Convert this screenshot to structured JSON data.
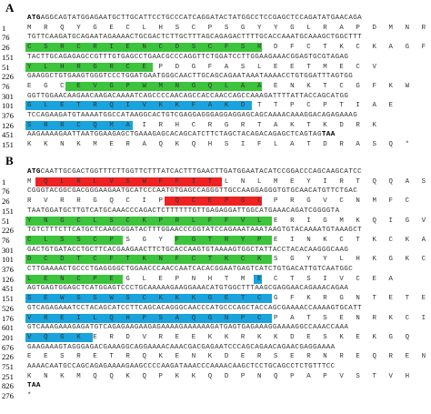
{
  "panels": [
    {
      "label": "A",
      "rows": [
        {
          "num": "",
          "type": "nt",
          "bold_prefix": "ATG",
          "text": "AGGCAGTATGGAGAATGCTTGCATTCCTGCCCATCAGGATACTATGGCCTCCGAGCTCCAGATATGAACAGA",
          "bold_suffix": ""
        },
        {
          "num": "1",
          "type": "aa",
          "text": "M R Q Y G E C L H S C P S G Y Y G L R A P D M N R",
          "highlights": []
        },
        {
          "num": "76",
          "type": "nt",
          "bold_prefix": "",
          "text": "TGTTCAAGATGCAGAATAGAAAACTGCGACTCTTGCTTTAGCAGAGACTTTTGCACCAAATGCAAAGCTGGCTTT",
          "bold_suffix": ""
        },
        {
          "num": "26",
          "type": "aa",
          "text": "C S R C R I E N C D S C F S R D F C T K C K A G F",
          "highlights": [
            {
              "color": "green",
              "start": 0,
              "end": 24
            }
          ]
        },
        {
          "num": "151",
          "type": "nt",
          "bold_prefix": "",
          "text": "TACTTGCAGAGAGCCGTTTGTGAGCCTGAACGCCCAGGTTCTGGATCCTTGGAAGAAACGGAGTGCGTAGAG",
          "bold_suffix": ""
        },
        {
          "num": "51",
          "type": "aa",
          "text": "Y L H R G R C E P D G F A S L E E T M E C V",
          "highlights": [
            {
              "color": "green",
              "start": 0,
              "end": 13
            }
          ]
        },
        {
          "num": "226",
          "type": "nt",
          "bold_prefix": "",
          "text": "GAAGGCTGTGAAGTGGGTCCCTGGATGAATGGGCAACTTGCAGCAGAATAAATAAAACCTGTGGATTTAGTGG",
          "bold_suffix": ""
        },
        {
          "num": "76",
          "type": "aa",
          "text": "E G C E V G P W M N G Q L A A E N K T C G F K W",
          "highlights": [
            {
              "color": "green",
              "start": 4,
              "end": 24
            }
          ]
        },
        {
          "num": "301",
          "type": "nt",
          "bold_prefix": "",
          "text": "GGTTGGAACAAGAACAAGACAAAATCAGCCCCAACAGCCACCAACCAGCCAAAGATTTTATTACCAGCATGG",
          "bold_suffix": ""
        },
        {
          "num": "101",
          "type": "aa",
          "text": "G L E T R Q I V K K F A K D T T P C P T I A E",
          "highlights": [
            {
              "color": "blue",
              "start": 0,
              "end": 23
            }
          ]
        },
        {
          "num": "376",
          "type": "nt",
          "bold_prefix": "",
          "text": "TCCAGAAGATGTAAAATGGCCATAAGGCACTGTCGAGGAGGGAGGAGGAGCAGCAAAACAAAGGACAGAGAAAG",
          "bold_suffix": ""
        },
        {
          "num": "126",
          "type": "aa",
          "text": "S R R C Q M A I R H C R G R T A K T K D R K",
          "highlights": [
            {
              "color": "blue",
              "start": 0,
              "end": 11
            }
          ]
        },
        {
          "num": "451",
          "type": "nt",
          "bold_prefix": "",
          "text": "AAGAAAAGAATTAATGGAAGAGCTGAAAGAGCACAGCATCTTCTAGCTACAGACAGAGCTCAGTAG",
          "bold_suffix": "TAA"
        },
        {
          "num": "151",
          "type": "aa",
          "text": "K K N K M E R A Q K Q H S I F L A T D R A S Q *",
          "highlights": []
        }
      ]
    },
    {
      "label": "B",
      "rows": [
        {
          "num": "",
          "type": "nt",
          "bold_prefix": "ATG",
          "text": "CAATTGCGACTGGTTTCTTGGTTCTTTATCACTTTGAACTTGATGGAATACATCCGGACCCAGCAAGCATCC",
          "bold_suffix": ""
        },
        {
          "num": "1",
          "type": "aa",
          "text": "M Q L R L V S W F F I T L N L M E Y I R T Q Q A S",
          "highlights": [
            {
              "color": "red",
              "start": 1,
              "end": 20
            }
          ]
        },
        {
          "num": "76",
          "type": "nt",
          "bold_prefix": "",
          "text": "CGGGTACGGCGACGGGAAGAATGCATCCCAATGTGAGCCAGGGTTGCCAAGGAGGGTGTGCAACATGTTCTGAC",
          "bold_suffix": ""
        },
        {
          "num": "26",
          "type": "aa",
          "text": "R V R R G Q C I P Q C E P G L P R G V C N M F C",
          "highlights": [
            {
              "color": "red",
              "start": 14,
              "end": 24
            }
          ]
        },
        {
          "num": "151",
          "type": "nt",
          "bold_prefix": "",
          "text": "TAATGGATGCTTGTCATGCAAACCCAGACTCTTTTTTGTTGAGAGGATTGGCATGAAACAGATCGGGGTA",
          "bold_suffix": ""
        },
        {
          "num": "51",
          "type": "aa",
          "text": "Y N G C L S C K P R L F F V L E R I G M K Q I G V",
          "highlights": [
            {
              "color": "green",
              "start": 0,
              "end": 25
            }
          ]
        },
        {
          "num": "226",
          "type": "nt",
          "bold_prefix": "",
          "text": "TGTCTTTCTTCATGCTCAAGCGGATACTTTGGAACCCGGTATCCAGAAATAAATAAGTGTACAAAATGTAAAGCT",
          "bold_suffix": ""
        },
        {
          "num": "76",
          "type": "aa",
          "text": "C L S S C P S G Y F G T R Y P E I N K C T K C K A",
          "highlights": [
            {
              "color": "green",
              "start": 0,
              "end": 10
            },
            {
              "color": "green",
              "start": 15,
              "end": 25
            }
          ]
        },
        {
          "num": "301",
          "type": "nt",
          "bold_prefix": "",
          "text": "GACTGTGATACCTGCTTCACGAAGAACTTCTGCACCAAGTGTAAAAGTGGCTATTACCTACACAAGGGCAAG",
          "bold_suffix": ""
        },
        {
          "num": "101",
          "type": "aa",
          "text": "D C D T C F T K N F C T K C K S G Y Y L H K G K C",
          "highlights": [
            {
              "color": "green",
              "start": 0,
              "end": 25
            }
          ]
        },
        {
          "num": "376",
          "type": "nt",
          "bold_prefix": "",
          "text": "CTTGAAAACTGCCCTGAGGGGCTGGAACCCAACCAATCACACGGAATGAGTCATCTGTGACATTGTCAATGGC",
          "bold_suffix": ""
        },
        {
          "num": "126",
          "type": "aa",
          "text": "L E N C P E G L E P N H T M E C T S I V C E A",
          "highlights": [
            {
              "color": "green",
              "start": 0,
              "end": 10
            },
            {
              "color": "blue",
              "start": 23,
              "end": 24
            }
          ]
        },
        {
          "num": "451",
          "type": "nt",
          "bold_prefix": "",
          "text": "AGTGAGTGGAGCTCATGGAGTCCCTGCAAAAAGAAGGAAACATGTGGCTTTAAGCGAGGAACAGAAACAGAA",
          "bold_suffix": ""
        },
        {
          "num": "151",
          "type": "aa",
          "text": "S E W S S W S C K K K G E T C G F K R G N T E T E",
          "highlights": [
            {
              "color": "blue",
              "start": 0,
              "end": 25
            }
          ]
        },
        {
          "num": "526",
          "type": "nt",
          "bold_prefix": "",
          "text": "GTCAGAGAAATCCTACAGCATCCTTCAGCACAGGGCAACCCATGCCCAGCTACCAGCGAAAACCAAAAGTGCATT",
          "bold_suffix": ""
        },
        {
          "num": "176",
          "type": "aa",
          "text": "V R E I L Q H P S A Q G N P C P A T S E N R K C I",
          "highlights": [
            {
              "color": "blue",
              "start": 0,
              "end": 25
            }
          ]
        },
        {
          "num": "601",
          "type": "nt",
          "bold_prefix": "",
          "text": "GTCAAAGAAAGAGATGTCAGAGAAGAAGAGAAAAGAAAAAAGATGAGTGAGAAAGGAAAAGGCCAAACCAAA",
          "bold_suffix": ""
        },
        {
          "num": "201",
          "type": "aa",
          "text": "V Q G K E R D V R E E K K R K K D E S K E K G Q",
          "highlights": [
            {
              "color": "blue",
              "start": 0,
              "end": 7
            }
          ]
        },
        {
          "num": "676",
          "type": "nt",
          "bold_prefix": "",
          "text": "GAAGAAAGTAGGGAGACGAAAGGCAGGAAAACAAACGACGAGAATCCCAGCAGAACAGAACGAGGAAAA",
          "bold_suffix": ""
        },
        {
          "num": "226",
          "type": "aa",
          "text": "E E S R E T R Q K E N K D E R S E R N R E Q R E N",
          "highlights": []
        },
        {
          "num": "751",
          "type": "nt",
          "bold_prefix": "",
          "text": "AAAACAATGCCAGCAGAGAAAAGAAGCCCCAAGATAAACCCAAAACAAGCTCCTGCAGCCTCTGTTTCC",
          "bold_suffix": ""
        },
        {
          "num": "251",
          "type": "aa",
          "text": "K N K M Q Q K Q P K K Q D P N Q P A P V S T V H",
          "highlights": []
        },
        {
          "num": "826",
          "type": "nt",
          "bold_prefix": "",
          "text": "",
          "bold_suffix": "TAA"
        },
        {
          "num": "276",
          "type": "aa",
          "text": "*",
          "highlights": []
        }
      ]
    }
  ]
}
